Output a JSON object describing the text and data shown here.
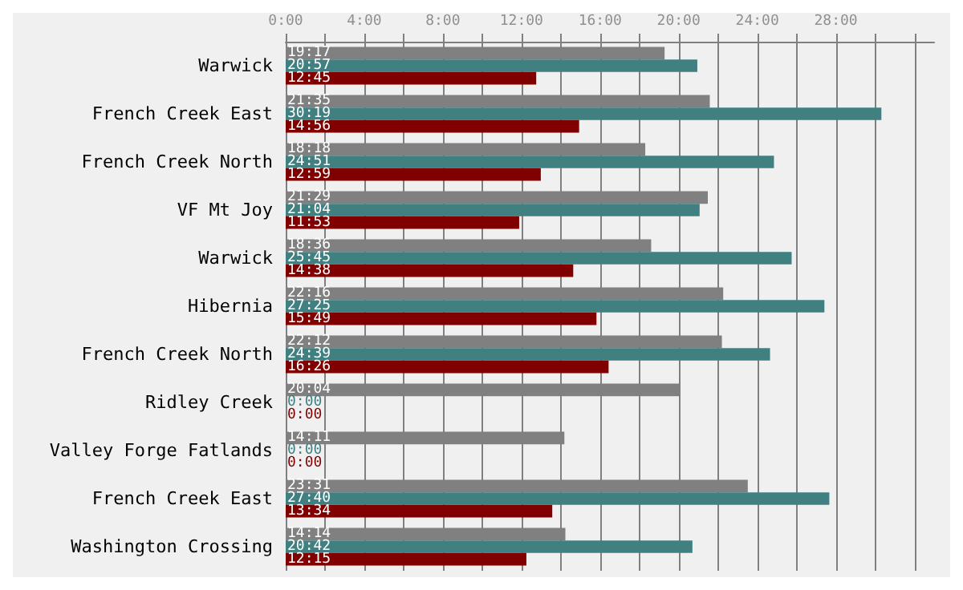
{
  "chart_data": {
    "type": "bar",
    "orientation": "horizontal",
    "categories": [
      "Warwick",
      "French Creek East",
      "French Creek North",
      "VF Mt Joy",
      "Warwick",
      "Hibernia",
      "French Creek North",
      "Ridley Creek",
      "Valley Forge Fatlands",
      "French Creek East",
      "Washington Crossing"
    ],
    "series": [
      {
        "color": "#808080",
        "values": [
          19.2833,
          21.5833,
          18.3,
          21.4833,
          18.6,
          22.2667,
          22.2,
          20.0667,
          14.1833,
          23.5167,
          14.2333
        ],
        "value_labels": [
          "19:17",
          "21:35",
          "18:18",
          "21:29",
          "18:36",
          "22:16",
          "22:12",
          "20:04",
          "14:11",
          "23:31",
          "14:14"
        ]
      },
      {
        "color": "#408080",
        "values": [
          20.95,
          30.3167,
          24.85,
          21.0667,
          25.75,
          27.4167,
          24.65,
          0,
          0,
          27.6667,
          20.7
        ],
        "value_labels": [
          "20:57",
          "30:19",
          "24:51",
          "21:04",
          "25:45",
          "27:25",
          "24:39",
          "0:00",
          "0:00",
          "27:40",
          "20:42"
        ]
      },
      {
        "color": "#800000",
        "values": [
          12.75,
          14.9333,
          12.9833,
          11.8833,
          14.6333,
          15.8167,
          16.4333,
          0,
          0,
          13.5667,
          12.25
        ],
        "value_labels": [
          "12:45",
          "14:56",
          "12:59",
          "11:53",
          "14:38",
          "15:49",
          "16:26",
          "0:00",
          "0:00",
          "13:34",
          "12:15"
        ]
      }
    ],
    "xlim": [
      0,
      33
    ],
    "xticks": [
      {
        "value": 0,
        "label": "0:00"
      },
      {
        "value": 2,
        "label": null
      },
      {
        "value": 4,
        "label": "4:00"
      },
      {
        "value": 6,
        "label": null
      },
      {
        "value": 8,
        "label": "8:00"
      },
      {
        "value": 10,
        "label": null
      },
      {
        "value": 12,
        "label": "12:00"
      },
      {
        "value": 14,
        "label": null
      },
      {
        "value": 16,
        "label": "16:00"
      },
      {
        "value": 18,
        "label": null
      },
      {
        "value": 20,
        "label": "20:00"
      },
      {
        "value": 22,
        "label": null
      },
      {
        "value": 24,
        "label": "24:00"
      },
      {
        "value": 26,
        "label": null
      },
      {
        "value": 28,
        "label": "28:00"
      },
      {
        "value": 30,
        "label": null
      },
      {
        "value": 32,
        "label": null
      }
    ],
    "grid": "x"
  }
}
